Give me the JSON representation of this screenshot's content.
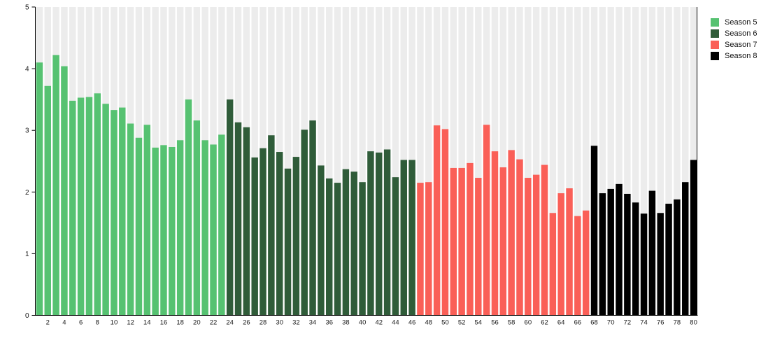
{
  "chart_data": {
    "type": "bar",
    "title": "",
    "xlabel": "",
    "ylabel": "",
    "ylim": [
      0,
      5
    ],
    "y_ticks": [
      0,
      1,
      2,
      3,
      4,
      5
    ],
    "x_range": [
      1,
      80
    ],
    "x_tick_step": 2,
    "grid": "vertical background bands per bar slot",
    "legend_position": "top-right",
    "colors": {
      "background_band": "#ececec",
      "axis": "#000000",
      "tick_label": "#1a1a1a"
    },
    "series": [
      {
        "name": "Season 5",
        "color": "#56c271",
        "start_x": 1,
        "values": [
          4.1,
          3.72,
          4.22,
          4.04,
          3.48,
          3.53,
          3.54,
          3.6,
          3.43,
          3.33,
          3.37,
          3.11,
          2.88,
          3.09,
          2.72,
          2.76,
          2.73,
          2.84,
          3.5,
          3.16,
          2.84,
          2.77,
          2.93
        ]
      },
      {
        "name": "Season 6",
        "color": "#2f5c39",
        "start_x": 24,
        "values": [
          3.5,
          3.13,
          3.05,
          2.56,
          2.71,
          2.92,
          2.65,
          2.38,
          2.57,
          3.01,
          3.16,
          2.43,
          2.22,
          2.15,
          2.37,
          2.33,
          2.16,
          2.66,
          2.64,
          2.69,
          2.24,
          2.52,
          2.52
        ]
      },
      {
        "name": "Season 7",
        "color": "#fa5f57",
        "start_x": 47,
        "values": [
          2.15,
          2.16,
          3.08,
          3.02,
          2.39,
          2.39,
          2.47,
          2.23,
          3.09,
          2.66,
          2.4,
          2.68,
          2.53,
          2.23,
          2.28,
          2.44,
          1.66,
          1.98,
          2.06,
          1.61,
          1.7
        ]
      },
      {
        "name": "Season 8",
        "color": "#000000",
        "start_x": 68,
        "values": [
          2.75,
          1.98,
          2.05,
          2.13,
          1.97,
          1.83,
          1.65,
          2.02,
          1.66,
          1.81,
          1.88,
          2.16,
          2.52
        ]
      }
    ]
  }
}
